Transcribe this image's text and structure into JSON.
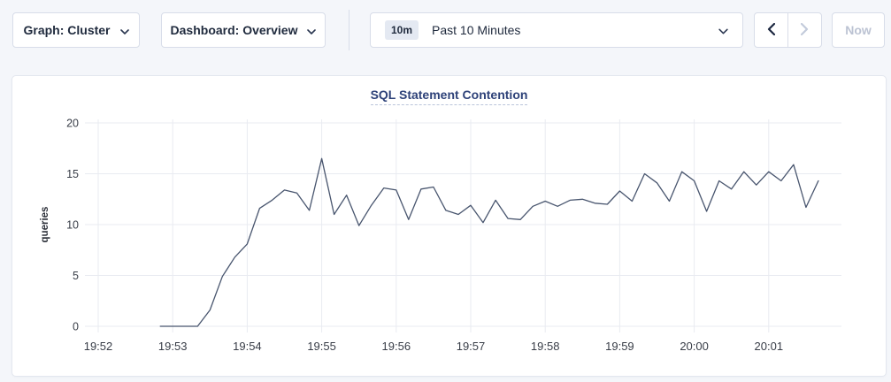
{
  "toolbar": {
    "graph_dropdown": {
      "label": "Graph: Cluster"
    },
    "dashboard_dropdown": {
      "label": "Dashboard: Overview"
    },
    "time_picker": {
      "range_badge": "10m",
      "label": "Past 10 Minutes"
    },
    "now_button": {
      "label": "Now"
    }
  },
  "chart_data": {
    "type": "line",
    "title": "SQL Statement Contention",
    "xlabel": "",
    "ylabel": "queries",
    "ylim": [
      0,
      20
    ],
    "yticks": [
      0,
      5,
      10,
      15,
      20
    ],
    "xticks": [
      "19:52",
      "19:53",
      "19:54",
      "19:55",
      "19:56",
      "19:57",
      "19:58",
      "19:59",
      "20:00",
      "20:01"
    ],
    "grid": true,
    "legend": "none",
    "line_color": "#48556e",
    "grid_color": "#e9ebf1",
    "tick_color": "#383d47",
    "series": [
      {
        "name": "queries",
        "points": [
          [
            "19:52:50",
            0
          ],
          [
            "19:53:00",
            0
          ],
          [
            "19:53:10",
            0
          ],
          [
            "19:53:20",
            0
          ],
          [
            "19:53:30",
            1.6
          ],
          [
            "19:53:40",
            4.9
          ],
          [
            "19:53:50",
            6.8
          ],
          [
            "19:54:00",
            8.1
          ],
          [
            "19:54:10",
            11.6
          ],
          [
            "19:54:20",
            12.4
          ],
          [
            "19:54:30",
            13.4
          ],
          [
            "19:54:40",
            13.1
          ],
          [
            "19:54:50",
            11.4
          ],
          [
            "19:55:00",
            16.5
          ],
          [
            "19:55:10",
            11.0
          ],
          [
            "19:55:20",
            12.9
          ],
          [
            "19:55:30",
            9.9
          ],
          [
            "19:55:40",
            11.9
          ],
          [
            "19:55:50",
            13.6
          ],
          [
            "19:56:00",
            13.4
          ],
          [
            "19:56:10",
            10.5
          ],
          [
            "19:56:20",
            13.5
          ],
          [
            "19:56:30",
            13.7
          ],
          [
            "19:56:40",
            11.4
          ],
          [
            "19:56:50",
            11.0
          ],
          [
            "19:57:00",
            11.9
          ],
          [
            "19:57:10",
            10.2
          ],
          [
            "19:57:20",
            12.4
          ],
          [
            "19:57:30",
            10.6
          ],
          [
            "19:57:40",
            10.5
          ],
          [
            "19:57:50",
            11.8
          ],
          [
            "19:58:00",
            12.3
          ],
          [
            "19:58:10",
            11.8
          ],
          [
            "19:58:20",
            12.4
          ],
          [
            "19:58:30",
            12.5
          ],
          [
            "19:58:40",
            12.1
          ],
          [
            "19:58:50",
            12.0
          ],
          [
            "19:59:00",
            13.3
          ],
          [
            "19:59:10",
            12.3
          ],
          [
            "19:59:20",
            15.0
          ],
          [
            "19:59:30",
            14.1
          ],
          [
            "19:59:40",
            12.3
          ],
          [
            "19:59:50",
            15.2
          ],
          [
            "20:00:00",
            14.3
          ],
          [
            "20:00:10",
            11.3
          ],
          [
            "20:00:20",
            14.3
          ],
          [
            "20:00:30",
            13.5
          ],
          [
            "20:00:40",
            15.2
          ],
          [
            "20:00:50",
            13.9
          ],
          [
            "20:01:00",
            15.2
          ],
          [
            "20:01:10",
            14.3
          ],
          [
            "20:01:20",
            15.9
          ],
          [
            "20:01:30",
            11.7
          ],
          [
            "20:01:40",
            14.3
          ]
        ]
      }
    ]
  },
  "colors": {
    "page_bg": "#f4f6fa",
    "panel_bg": "#ffffff",
    "panel_border": "#e3e7ef",
    "control_border": "#d8dde9",
    "text_primary": "#1f2a3d",
    "text_disabled": "#bcc3d3",
    "badge_bg": "#e4e9f2",
    "title_color": "#2e4279"
  }
}
